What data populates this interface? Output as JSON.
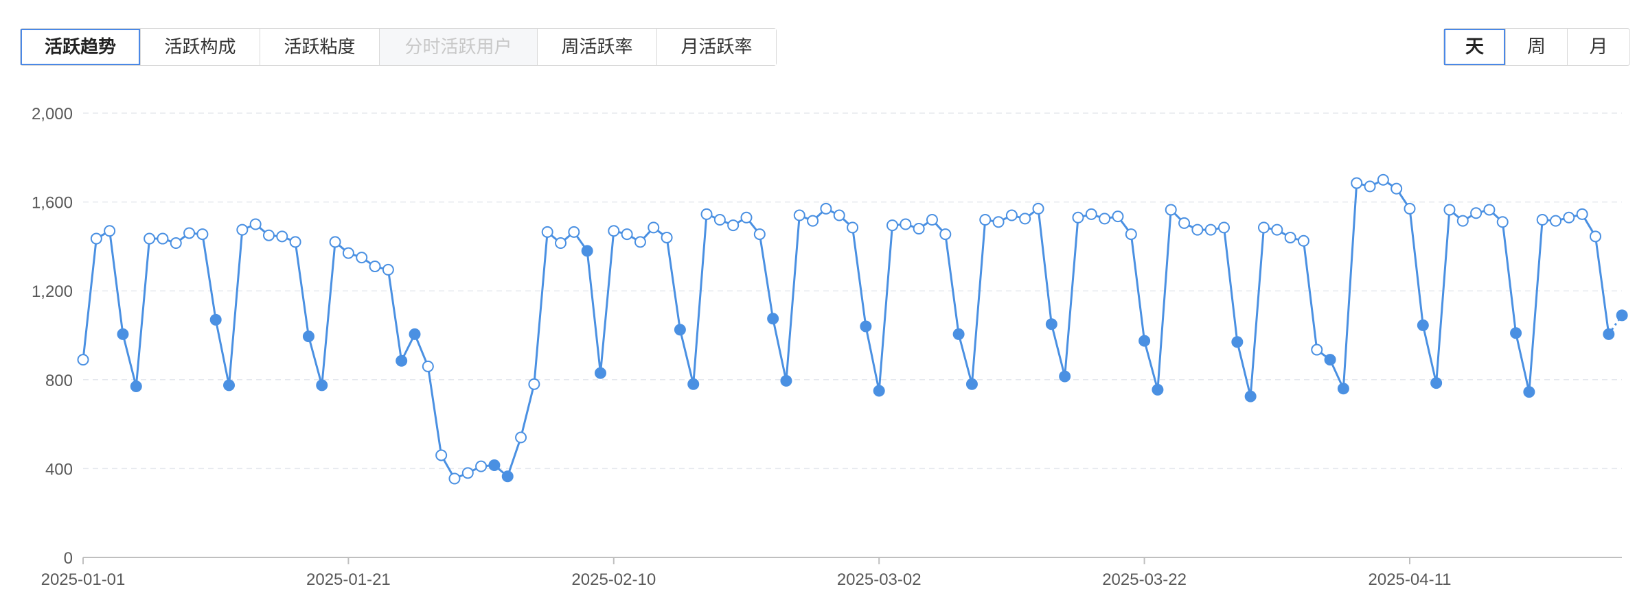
{
  "tabs": [
    {
      "label": "活跃趋势",
      "state": "active"
    },
    {
      "label": "活跃构成",
      "state": "normal"
    },
    {
      "label": "活跃粘度",
      "state": "normal"
    },
    {
      "label": "分时活跃用户",
      "state": "disabled"
    },
    {
      "label": "周活跃率",
      "state": "normal"
    },
    {
      "label": "月活跃率",
      "state": "normal"
    }
  ],
  "granularity": [
    {
      "label": "天",
      "active": true
    },
    {
      "label": "周",
      "active": false
    },
    {
      "label": "月",
      "active": false
    }
  ],
  "colors": {
    "line": "#4a90e2",
    "accent": "#4a88e6",
    "grid": "#e5e8ee"
  },
  "chart_data": {
    "type": "line",
    "x_start": "2025-01-01",
    "x_tick_labels": [
      "2025-01-01",
      "2025-01-21",
      "2025-02-10",
      "2025-03-02",
      "2025-03-22",
      "2025-04-11"
    ],
    "y_tick_labels": [
      "0",
      "400",
      "800",
      "1,200",
      "1,600",
      "2,000"
    ],
    "ylim": [
      0,
      2000
    ],
    "grid": true,
    "marker_note": "filled markers mark weekend days (Sat/Sun); hollow markers mark weekdays",
    "values": [
      890,
      1435,
      1470,
      1005,
      770,
      1435,
      1435,
      1415,
      1460,
      1455,
      1070,
      775,
      1475,
      1500,
      1450,
      1445,
      1420,
      995,
      775,
      1420,
      1370,
      1350,
      1310,
      1295,
      885,
      1005,
      860,
      460,
      355,
      380,
      410,
      415,
      365,
      540,
      780,
      1465,
      1415,
      1465,
      1380,
      830,
      1470,
      1455,
      1420,
      1485,
      1440,
      1025,
      780,
      1545,
      1520,
      1495,
      1530,
      1455,
      1075,
      795,
      1540,
      1515,
      1570,
      1540,
      1485,
      1040,
      750,
      1495,
      1500,
      1480,
      1520,
      1455,
      1005,
      780,
      1520,
      1510,
      1540,
      1525,
      1570,
      1050,
      815,
      1530,
      1545,
      1525,
      1535,
      1455,
      975,
      755,
      1565,
      1505,
      1475,
      1475,
      1485,
      970,
      725,
      1485,
      1475,
      1440,
      1425,
      935,
      890,
      760,
      1685,
      1670,
      1700,
      1660,
      1570,
      1045,
      785,
      1565,
      1515,
      1550,
      1565,
      1510,
      1010,
      745,
      1520,
      1515,
      1530,
      1545,
      1445,
      1005,
      1090
    ]
  }
}
